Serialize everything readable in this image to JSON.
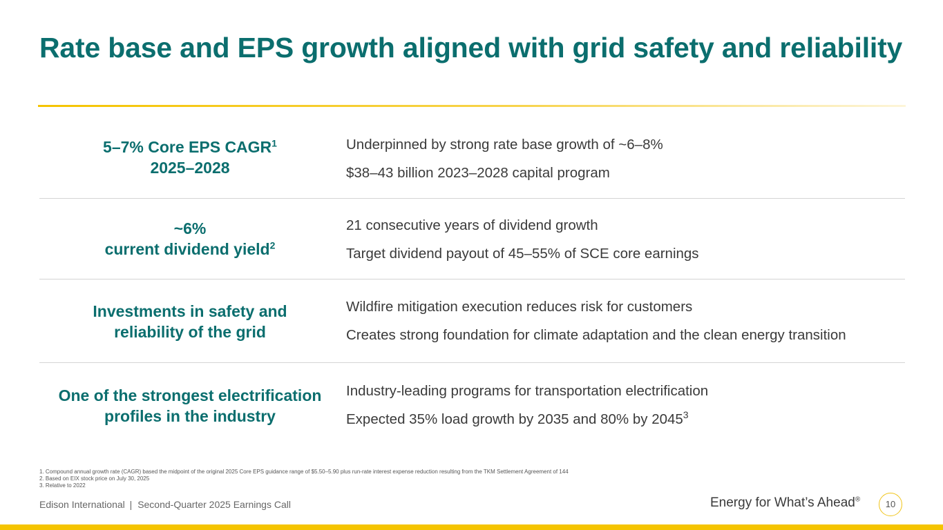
{
  "slide": {
    "title": "Rate base and EPS growth aligned with grid safety and reliability"
  },
  "rows": [
    {
      "left_line1": "5–7% Core EPS CAGR",
      "left_line1_sup": "1",
      "left_line2": "2025–2028",
      "left_line2_sup": "",
      "points": [
        {
          "text": "Underpinned by strong rate base growth of ~6–8%",
          "sup": ""
        },
        {
          "text": "$38–43 billion 2023–2028 capital program",
          "sup": ""
        }
      ]
    },
    {
      "left_line1": "~6%",
      "left_line1_sup": "",
      "left_line2": "current dividend yield",
      "left_line2_sup": "2",
      "points": [
        {
          "text": "21 consecutive years of dividend growth",
          "sup": ""
        },
        {
          "text": "Target dividend payout of 45–55% of SCE core earnings",
          "sup": ""
        }
      ]
    },
    {
      "left_line1": "Investments in safety and",
      "left_line1_sup": "",
      "left_line2": "reliability of the grid",
      "left_line2_sup": "",
      "points": [
        {
          "text": "Wildfire mitigation execution reduces risk for customers",
          "sup": ""
        },
        {
          "text": "Creates strong foundation for climate adaptation and the clean energy transition",
          "sup": ""
        }
      ]
    },
    {
      "left_line1": "One of the strongest electrification",
      "left_line1_sup": "",
      "left_line2": "profiles in the industry",
      "left_line2_sup": "",
      "points": [
        {
          "text": "Industry-leading programs for transportation electrification",
          "sup": ""
        },
        {
          "text": "Expected 35% load growth by 2035 and 80% by 2045",
          "sup": "3"
        }
      ]
    }
  ],
  "footnotes": [
    "1.   Compound annual growth rate (CAGR) based the midpoint of the original 2025 Core EPS guidance range of $5.50–5.90 plus run-rate interest expense reduction resulting from the TKM Settlement Agreement of 144",
    "2.   Based on EIX stock price on July 30, 2025",
    "3.   Relative to 2022"
  ],
  "footer": {
    "company": "Edison International",
    "separator": "|",
    "event": "Second-Quarter 2025 Earnings Call",
    "tagline": "Energy for What’s Ahead",
    "tagline_mark": "®",
    "page_number": "10"
  },
  "colors": {
    "title_teal": "#0b6e6e",
    "accent_yellow": "#f5c400",
    "body_text": "#3a3a3a"
  }
}
